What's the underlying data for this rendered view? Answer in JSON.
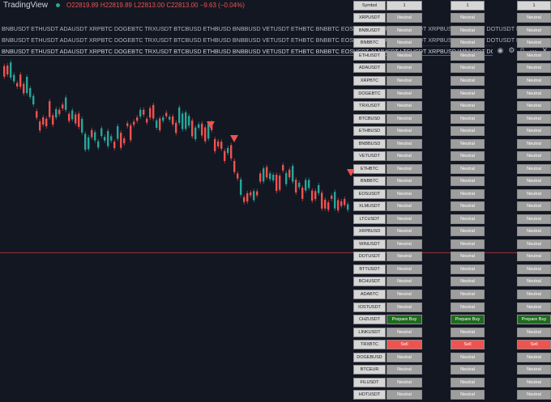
{
  "header": {
    "logo": "TradingView",
    "open": "O22819.89",
    "high": "H22819.89",
    "low": "L22813.00",
    "close": "C22813.00",
    "change": "−9.63 (−0.04%)"
  },
  "tickers": {
    "line": "BNBUSDT ETHUSDT ADAUSDT XRPBTC DOGEBTC TRXUSDT BTCBUSD ETHBUSD BNBBUSD VETUSDT ETHBTC BNBBTC EOSUSDT XLMUSDT LTCUSDT XRPBUSD WINUSDT DOTUSDT BTTUSDT BCHUSDT"
  },
  "table": {
    "header": {
      "symbol": "Symbol",
      "col1": "1",
      "col2": "1",
      "col3": "1"
    },
    "rows": [
      {
        "symbol": "XRPUSDT",
        "s1": "Neutral",
        "s2": "Neutral",
        "s3": "Neutral"
      },
      {
        "symbol": "BNBUSDT",
        "s1": "Neutral",
        "s2": "Neutral",
        "s3": "Neutral"
      },
      {
        "symbol": "BNBBTC",
        "s1": "Neutral",
        "s2": "Neutral",
        "s3": "Neutral"
      },
      {
        "symbol": "ETHUSDT",
        "s1": "Neutral",
        "s2": "Neutral",
        "s3": "Neutral"
      },
      {
        "symbol": "ADAUSDT",
        "s1": "Neutral",
        "s2": "Neutral",
        "s3": "Neutral"
      },
      {
        "symbol": "XRPBTC",
        "s1": "Neutral",
        "s2": "Neutral",
        "s3": "Neutral"
      },
      {
        "symbol": "DOGEBTC",
        "s1": "Neutral",
        "s2": "Neutral",
        "s3": "Neutral"
      },
      {
        "symbol": "TRXUSDT",
        "s1": "Neutral",
        "s2": "Neutral",
        "s3": "Neutral"
      },
      {
        "symbol": "BTCBUSD",
        "s1": "Neutral",
        "s2": "Neutral",
        "s3": "Neutral"
      },
      {
        "symbol": "ETHBUSD",
        "s1": "Neutral",
        "s2": "Neutral",
        "s3": "Neutral"
      },
      {
        "symbol": "BNBBUSD",
        "s1": "Neutral",
        "s2": "Neutral",
        "s3": "Neutral"
      },
      {
        "symbol": "VETUSDT",
        "s1": "Neutral",
        "s2": "Neutral",
        "s3": "Neutral"
      },
      {
        "symbol": "ETHBTC",
        "s1": "Neutral",
        "s2": "Neutral",
        "s3": "Neutral"
      },
      {
        "symbol": "BNBBTC",
        "s1": "Neutral",
        "s2": "Neutral",
        "s3": "Neutral"
      },
      {
        "symbol": "EOSUSDT",
        "s1": "Neutral",
        "s2": "Neutral",
        "s3": "Neutral"
      },
      {
        "symbol": "XLMUSDT",
        "s1": "Neutral",
        "s2": "Neutral",
        "s3": "Neutral"
      },
      {
        "symbol": "LTCUSDT",
        "s1": "Neutral",
        "s2": "Neutral",
        "s3": "Neutral"
      },
      {
        "symbol": "XRPBUSD",
        "s1": "Neutral",
        "s2": "Neutral",
        "s3": "Neutral"
      },
      {
        "symbol": "WINUSDT",
        "s1": "Neutral",
        "s2": "Neutral",
        "s3": "Neutral"
      },
      {
        "symbol": "DOTUSDT",
        "s1": "Neutral",
        "s2": "Neutral",
        "s3": "Neutral"
      },
      {
        "symbol": "BTTUSDT",
        "s1": "Neutral",
        "s2": "Neutral",
        "s3": "Neutral"
      },
      {
        "symbol": "BCHUSDT",
        "s1": "Neutral",
        "s2": "Neutral",
        "s3": "Neutral"
      },
      {
        "symbol": "ADABTC",
        "s1": "Neutral",
        "s2": "Neutral",
        "s3": "Neutral"
      },
      {
        "symbol": "IOSTUSDT",
        "s1": "Neutral",
        "s2": "Neutral",
        "s3": "Neutral"
      },
      {
        "symbol": "CHZUSDT",
        "s1": "Prepare Buy",
        "s2": "Prepare Buy",
        "s3": "Prepare Buy"
      },
      {
        "symbol": "LINKUSDT",
        "s1": "Neutral",
        "s2": "Neutral",
        "s3": "Neutral"
      },
      {
        "symbol": "TRXBTC",
        "s1": "Sell",
        "s2": "Sell",
        "s3": "Sell"
      },
      {
        "symbol": "DOGEBUSD",
        "s1": "Neutral",
        "s2": "Neutral",
        "s3": "Neutral"
      },
      {
        "symbol": "BTCEUR",
        "s1": "Neutral",
        "s2": "Neutral",
        "s3": "Neutral"
      },
      {
        "symbol": "FILUSDT",
        "s1": "Neutral",
        "s2": "Neutral",
        "s3": "Neutral"
      },
      {
        "symbol": "HOTUSDT",
        "s1": "Neutral",
        "s2": "Neutral",
        "s3": "Neutral"
      }
    ]
  },
  "colors": {
    "background": "#131722",
    "up": "#26a69a",
    "down": "#ef5350",
    "buy": "#1f6b1f",
    "neutral": "#9e9e9e"
  },
  "icons": [
    "eye-icon",
    "settings-icon",
    "code-braces-icon",
    "more-icon",
    "close-icon"
  ]
}
